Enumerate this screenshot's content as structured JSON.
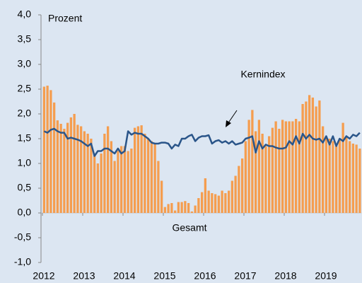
{
  "chart_data": {
    "type": "bar_line",
    "ylabel": "Prozent",
    "categories": [
      "2012",
      null,
      null,
      null,
      null,
      null,
      null,
      null,
      null,
      null,
      null,
      null,
      "2013",
      null,
      null,
      null,
      null,
      null,
      null,
      null,
      null,
      null,
      null,
      null,
      "2014",
      null,
      null,
      null,
      null,
      null,
      null,
      null,
      null,
      null,
      null,
      null,
      "2015",
      null,
      null,
      null,
      null,
      null,
      null,
      null,
      null,
      null,
      null,
      null,
      "2016",
      null,
      null,
      null,
      null,
      null,
      null,
      null,
      null,
      null,
      null,
      null,
      "2017",
      null,
      null,
      null,
      null,
      null,
      null,
      null,
      null,
      null,
      null,
      null,
      "2018",
      null,
      null,
      null,
      null,
      null,
      null,
      null,
      null,
      null,
      null,
      null,
      "2019",
      null,
      null,
      null,
      null,
      null,
      null,
      null,
      null,
      null,
      null
    ],
    "series": [
      {
        "name": "Gesamt",
        "type": "bar",
        "color": "#f59d4f",
        "values": [
          2.55,
          2.57,
          2.48,
          2.23,
          1.87,
          1.8,
          1.7,
          1.82,
          1.93,
          2.0,
          1.78,
          1.75,
          1.65,
          1.6,
          1.5,
          1.2,
          1.0,
          1.2,
          1.6,
          1.75,
          1.45,
          1.05,
          1.25,
          1.35,
          1.35,
          1.25,
          1.3,
          1.72,
          1.75,
          1.77,
          1.6,
          1.5,
          1.45,
          1.4,
          1.05,
          0.65,
          0.12,
          0.18,
          0.2,
          0.05,
          0.22,
          0.22,
          0.24,
          0.2,
          0.03,
          0.15,
          0.3,
          0.42,
          0.7,
          0.45,
          0.4,
          0.38,
          0.35,
          0.45,
          0.4,
          0.45,
          0.65,
          0.75,
          0.95,
          1.1,
          1.45,
          1.88,
          2.08,
          1.65,
          1.88,
          1.6,
          1.35,
          1.55,
          1.72,
          1.85,
          1.7,
          1.88,
          1.85,
          1.85,
          1.85,
          1.9,
          1.85,
          2.2,
          2.25,
          2.38,
          2.33,
          2.15,
          2.27,
          1.75,
          1.55,
          1.5,
          1.45,
          1.35,
          1.5,
          1.82,
          1.55,
          1.45,
          1.4,
          1.38,
          1.3
        ]
      },
      {
        "name": "Kernindex",
        "type": "line",
        "color": "#2a5589",
        "values": [
          1.65,
          1.62,
          1.68,
          1.7,
          1.65,
          1.62,
          1.62,
          1.5,
          1.52,
          1.5,
          1.48,
          1.45,
          1.4,
          1.35,
          1.4,
          1.15,
          1.25,
          1.25,
          1.3,
          1.3,
          1.25,
          1.2,
          1.3,
          1.2,
          1.25,
          1.65,
          1.58,
          1.62,
          1.6,
          1.6,
          1.55,
          1.5,
          1.42,
          1.4,
          1.4,
          1.42,
          1.42,
          1.4,
          1.3,
          1.38,
          1.35,
          1.5,
          1.5,
          1.55,
          1.58,
          1.45,
          1.52,
          1.55,
          1.55,
          1.57,
          1.4,
          1.45,
          1.47,
          1.42,
          1.45,
          1.4,
          1.45,
          1.38,
          1.4,
          1.42,
          1.5,
          1.52,
          1.55,
          1.22,
          1.45,
          1.3,
          1.38,
          1.35,
          1.35,
          1.32,
          1.3,
          1.3,
          1.32,
          1.45,
          1.38,
          1.55,
          1.4,
          1.6,
          1.5,
          1.58,
          1.5,
          1.48,
          1.5,
          1.42,
          1.55,
          1.38,
          1.55,
          1.35,
          1.5,
          1.45,
          1.55,
          1.5,
          1.58,
          1.55,
          1.62
        ]
      }
    ],
    "ylim": [
      -1.0,
      4.0
    ],
    "yticks": [
      {
        "value": -1.0,
        "label": "-1,0"
      },
      {
        "value": -0.5,
        "label": "-0,5"
      },
      {
        "value": 0.0,
        "label": "0,0"
      },
      {
        "value": 0.5,
        "label": "0,5"
      },
      {
        "value": 1.0,
        "label": "1,0"
      },
      {
        "value": 1.5,
        "label": "1,5"
      },
      {
        "value": 2.0,
        "label": "2,0"
      },
      {
        "value": 2.5,
        "label": "2,5"
      },
      {
        "value": 3.0,
        "label": "3,0"
      },
      {
        "value": 3.5,
        "label": "3,5"
      },
      {
        "value": 4.0,
        "label": "4,0"
      }
    ],
    "grid": false
  }
}
